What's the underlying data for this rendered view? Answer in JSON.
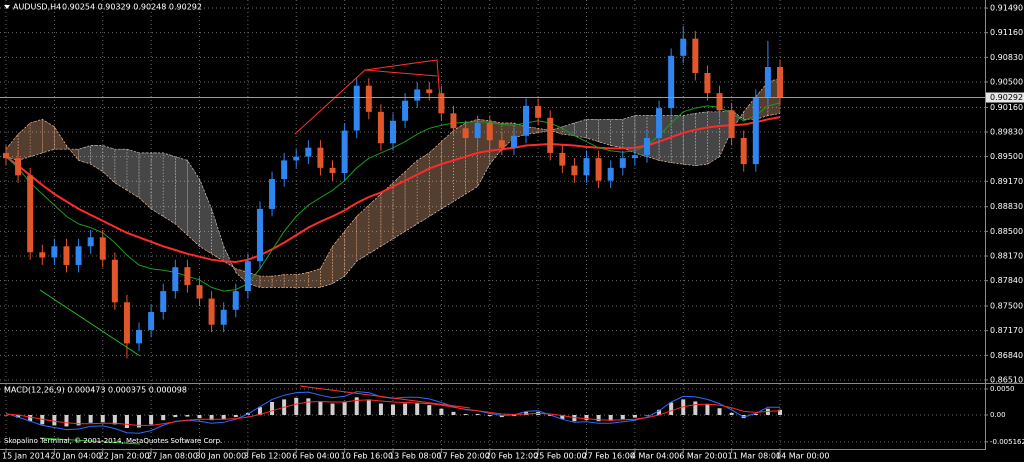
{
  "chart_data": [
    {
      "type": "candlestick",
      "title": "AUDUSD,H4",
      "subtitle": "0.90254 0.90329 0.90248 0.90292",
      "categories": [
        "15 Jan 2014",
        null,
        null,
        null,
        "20 Jan 04:00",
        null,
        null,
        null,
        "22 Jan 20:00",
        null,
        null,
        null,
        "27 Jan 08:00",
        null,
        null,
        null,
        "30 Jan 00:00",
        null,
        null,
        null,
        "3 Feb 12:00",
        null,
        null,
        null,
        "6 Feb 04:00",
        null,
        null,
        null,
        "10 Feb 16:00",
        null,
        null,
        null,
        "13 Feb 08:00",
        null,
        null,
        null,
        "17 Feb 20:00",
        null,
        null,
        null,
        "20 Feb 12:00",
        null,
        null,
        null,
        "25 Feb 00:00",
        null,
        null,
        null,
        "27 Feb 16:00",
        null,
        null,
        null,
        "4 Mar 04:00",
        null,
        null,
        null,
        "6 Mar 20:00",
        null,
        null,
        null,
        "11 Mar 08:00",
        null,
        null,
        null,
        "14 Mar 00:00"
      ],
      "open": [
        0.8955,
        0.8948,
        0.8925,
        0.8822,
        0.8815,
        0.883,
        0.8805,
        0.883,
        0.8842,
        0.8812,
        0.8755,
        0.87,
        0.8718,
        0.8742,
        0.877,
        0.8802,
        0.8778,
        0.876,
        0.8725,
        0.8745,
        0.877,
        0.881,
        0.888,
        0.892,
        0.8945,
        0.895,
        0.8962,
        0.8935,
        0.8928,
        0.8985,
        0.9045,
        0.901,
        0.8968,
        0.8998,
        0.9025,
        0.904,
        0.9035,
        0.9008,
        0.8988,
        0.8975,
        0.8995,
        0.8972,
        0.8962,
        0.8978,
        0.9018,
        0.9002,
        0.8955,
        0.8938,
        0.8925,
        0.8948,
        0.8918,
        0.8935,
        0.8948,
        0.8952,
        0.8975,
        0.9015,
        0.9085,
        0.9108,
        0.9062,
        0.9035,
        0.9012,
        0.8975,
        0.894,
        0.903,
        0.907
      ],
      "high": [
        0.8965,
        0.8958,
        0.8935,
        0.8832,
        0.884,
        0.884,
        0.884,
        0.8852,
        0.8852,
        0.8822,
        0.8765,
        0.8728,
        0.8752,
        0.878,
        0.8812,
        0.8812,
        0.8788,
        0.877,
        0.8755,
        0.878,
        0.882,
        0.889,
        0.893,
        0.8955,
        0.896,
        0.8972,
        0.8972,
        0.8945,
        0.8995,
        0.9055,
        0.9055,
        0.902,
        0.9008,
        0.9035,
        0.905,
        0.905,
        0.9045,
        0.9018,
        0.8998,
        0.9005,
        0.9005,
        0.8982,
        0.8988,
        0.9028,
        0.9028,
        0.9012,
        0.8965,
        0.8948,
        0.8958,
        0.8958,
        0.8945,
        0.8958,
        0.8962,
        0.8985,
        0.9025,
        0.9095,
        0.9125,
        0.9118,
        0.9072,
        0.9045,
        0.9022,
        0.8985,
        0.904,
        0.9105,
        0.908
      ],
      "low": [
        0.8938,
        0.8915,
        0.8812,
        0.8805,
        0.8805,
        0.8795,
        0.8795,
        0.882,
        0.8802,
        0.8745,
        0.868,
        0.869,
        0.8708,
        0.8732,
        0.876,
        0.8768,
        0.875,
        0.8715,
        0.8715,
        0.8735,
        0.876,
        0.88,
        0.887,
        0.891,
        0.8935,
        0.894,
        0.8925,
        0.8918,
        0.8918,
        0.8975,
        0.9,
        0.8958,
        0.8958,
        0.8988,
        0.9015,
        0.9025,
        0.8998,
        0.8978,
        0.8965,
        0.8965,
        0.8962,
        0.8952,
        0.8952,
        0.8968,
        0.8992,
        0.8945,
        0.8928,
        0.8915,
        0.8915,
        0.8908,
        0.8908,
        0.8925,
        0.8938,
        0.8942,
        0.8965,
        0.9005,
        0.9075,
        0.9052,
        0.9025,
        0.9002,
        0.8965,
        0.893,
        0.893,
        0.902,
        0.9019
      ],
      "close": [
        0.8948,
        0.8925,
        0.8822,
        0.8815,
        0.883,
        0.8805,
        0.883,
        0.8842,
        0.8812,
        0.8755,
        0.87,
        0.8718,
        0.8742,
        0.877,
        0.8802,
        0.8778,
        0.876,
        0.8725,
        0.8745,
        0.877,
        0.881,
        0.888,
        0.892,
        0.8945,
        0.895,
        0.8962,
        0.8935,
        0.8928,
        0.8985,
        0.9045,
        0.901,
        0.8968,
        0.8998,
        0.9025,
        0.904,
        0.9035,
        0.9008,
        0.8988,
        0.8975,
        0.8995,
        0.8972,
        0.8962,
        0.8978,
        0.9018,
        0.9002,
        0.8955,
        0.8938,
        0.8925,
        0.8948,
        0.8918,
        0.8935,
        0.8948,
        0.8952,
        0.8975,
        0.9015,
        0.9085,
        0.9108,
        0.9062,
        0.9035,
        0.9012,
        0.8975,
        0.894,
        0.903,
        0.907,
        0.9029
      ],
      "up_color": "#2f86f0",
      "down_color": "#e2562b",
      "overlays": [
        {
          "color": "#ff2a2a",
          "values": [
            0.895,
            0.8938,
            0.8925,
            0.8912,
            0.89,
            0.889,
            0.888,
            0.8872,
            0.8864,
            0.8856,
            0.8848,
            0.8842,
            0.8836,
            0.883,
            0.8825,
            0.882,
            0.8816,
            0.8812,
            0.881,
            0.8809,
            0.8812,
            0.8818,
            0.8826,
            0.8835,
            0.8845,
            0.8855,
            0.8863,
            0.887,
            0.8878,
            0.8888,
            0.8896,
            0.8902,
            0.891,
            0.8918,
            0.8926,
            0.8934,
            0.894,
            0.8945,
            0.895,
            0.8955,
            0.8958,
            0.896,
            0.8962,
            0.8965,
            0.8966,
            0.8967,
            0.8966,
            0.8965,
            0.8963,
            0.8962,
            0.8961,
            0.8961,
            0.8962,
            0.8965,
            0.897,
            0.8976,
            0.8982,
            0.8986,
            0.8989,
            0.8991,
            0.8992,
            0.8993,
            0.8996,
            0.9,
            0.9003
          ]
        },
        {
          "color": "#1c9a1c",
          "values": [
            0.895,
            0.8935,
            0.8915,
            0.89,
            0.8885,
            0.887,
            0.886,
            0.8855,
            0.8848,
            0.8835,
            0.8818,
            0.8805,
            0.88,
            0.8798,
            0.8795,
            0.879,
            0.8785,
            0.8775,
            0.877,
            0.8772,
            0.878,
            0.88,
            0.8825,
            0.885,
            0.887,
            0.8885,
            0.8895,
            0.8905,
            0.8918,
            0.8935,
            0.8948,
            0.8955,
            0.8962,
            0.897,
            0.898,
            0.8988,
            0.8992,
            0.8995,
            0.8996,
            0.8997,
            0.8996,
            0.8993,
            0.8992,
            0.8995,
            0.8998,
            0.8995,
            0.8988,
            0.8978,
            0.897,
            0.8962,
            0.8958,
            0.8956,
            0.8958,
            0.8965,
            0.8978,
            0.8995,
            0.901,
            0.9015,
            0.9018,
            0.9016,
            0.9008,
            0.8998,
            0.9005,
            0.9018,
            0.9022
          ]
        }
      ],
      "cloud": {
        "span_a": [
          0.896,
          0.898,
          0.8995,
          0.9,
          0.899,
          0.8965,
          0.8945,
          0.894,
          0.893,
          0.8915,
          0.8905,
          0.8895,
          0.888,
          0.887,
          0.886,
          0.8845,
          0.883,
          0.882,
          0.881,
          0.88,
          0.8795,
          0.879,
          0.879,
          0.8792,
          0.8792,
          0.8795,
          0.88,
          0.883,
          0.885,
          0.887,
          0.8885,
          0.89,
          0.8915,
          0.893,
          0.8945,
          0.8955,
          0.897,
          0.8985,
          0.8995,
          0.9,
          0.8998,
          0.8995,
          0.8995,
          0.899,
          0.8988,
          0.8985,
          0.898,
          0.8978,
          0.8975,
          0.897,
          0.8965,
          0.8962,
          0.8955,
          0.895,
          0.8945,
          0.8942,
          0.894,
          0.8938,
          0.894,
          0.895,
          0.8985,
          0.901,
          0.903,
          0.905,
          0.9055
        ],
        "span_b": [
          0.895,
          0.8945,
          0.895,
          0.8955,
          0.896,
          0.896,
          0.896,
          0.8965,
          0.8965,
          0.896,
          0.896,
          0.8955,
          0.8955,
          0.8955,
          0.895,
          0.8945,
          0.892,
          0.888,
          0.883,
          0.8795,
          0.878,
          0.8775,
          0.8775,
          0.8775,
          0.8775,
          0.8775,
          0.8775,
          0.878,
          0.879,
          0.881,
          0.882,
          0.883,
          0.884,
          0.885,
          0.886,
          0.887,
          0.888,
          0.889,
          0.89,
          0.891,
          0.894,
          0.896,
          0.8975,
          0.898,
          0.8982,
          0.8985,
          0.899,
          0.8995,
          0.9,
          0.9,
          0.9,
          0.9,
          0.9005,
          0.9005,
          0.9005,
          0.9005,
          0.9005,
          0.9008,
          0.901,
          0.901,
          0.9012,
          0.9,
          0.9,
          0.9005,
          0.9008
        ],
        "up_color": "#f2b38a",
        "down_color": "#c8c8c8"
      },
      "last_price": 0.90292,
      "ylim": [
        0.86483,
        0.91584
      ],
      "yticks": [
        {
          "value": 0.9149,
          "label": "0.91490"
        },
        {
          "value": 0.9116,
          "label": "0.91160"
        },
        {
          "value": 0.9083,
          "label": "0.90830"
        },
        {
          "value": 0.905,
          "label": "0.90500"
        },
        {
          "value": 0.9016,
          "label": "0.90160"
        },
        {
          "value": 0.8983,
          "label": "0.89830"
        },
        {
          "value": 0.895,
          "label": "0.89500"
        },
        {
          "value": 0.8917,
          "label": "0.89170"
        },
        {
          "value": 0.8883,
          "label": "0.88830"
        },
        {
          "value": 0.885,
          "label": "0.88500"
        },
        {
          "value": 0.8817,
          "label": "0.88170"
        },
        {
          "value": 0.8784,
          "label": "0.87840"
        },
        {
          "value": 0.875,
          "label": "0.87500"
        },
        {
          "value": 0.8717,
          "label": "0.87170"
        },
        {
          "value": 0.8684,
          "label": "0.86840"
        },
        {
          "value": 0.8651,
          "label": "0.86510"
        }
      ],
      "grid": true
    },
    {
      "type": "macd",
      "title": "MACD(12,26,9) 0.000473 0.000375 0.000098",
      "histogram": [
        0.0,
        -0.0005,
        -0.0012,
        -0.0018,
        -0.002,
        -0.0022,
        -0.002,
        -0.0015,
        -0.0014,
        -0.0018,
        -0.0025,
        -0.0024,
        -0.0018,
        -0.001,
        -0.0004,
        -0.0003,
        -0.0006,
        -0.001,
        -0.0008,
        -0.0004,
        0.0004,
        0.0015,
        0.0025,
        0.003,
        0.0033,
        0.0032,
        0.0026,
        0.0022,
        0.0026,
        0.0034,
        0.003,
        0.0022,
        0.002,
        0.0022,
        0.0022,
        0.0019,
        0.0012,
        0.0006,
        0.0002,
        0.0002,
        -0.0002,
        -0.0004,
        -0.0002,
        0.0006,
        0.0006,
        -0.0002,
        -0.0008,
        -0.0012,
        -0.001,
        -0.0012,
        -0.0011,
        -0.0008,
        -0.0005,
        0.0,
        0.001,
        0.0024,
        0.003,
        0.0026,
        0.002,
        0.0013,
        0.0004,
        -0.0006,
        0.0002,
        0.0012,
        0.001
      ],
      "histogram_color": "#cfcfcf",
      "lines": [
        {
          "color": "#2d6bff",
          "values": [
            0.0003,
            -0.0004,
            -0.0012,
            -0.002,
            -0.0024,
            -0.0028,
            -0.0027,
            -0.0022,
            -0.0021,
            -0.0026,
            -0.0034,
            -0.0035,
            -0.003,
            -0.002,
            -0.0012,
            -0.001,
            -0.0012,
            -0.0016,
            -0.0014,
            -0.0008,
            0.0002,
            0.0016,
            0.003,
            0.0038,
            0.0043,
            0.0044,
            0.0038,
            0.0033,
            0.0036,
            0.0045,
            0.0043,
            0.0035,
            0.0032,
            0.0034,
            0.0034,
            0.0031,
            0.0024,
            0.0016,
            0.001,
            0.0008,
            0.0003,
            -0.0001,
            0.0,
            0.0007,
            0.0008,
            0.0,
            -0.0008,
            -0.0014,
            -0.0013,
            -0.0016,
            -0.0016,
            -0.0013,
            -0.001,
            -0.0004,
            0.0008,
            0.0025,
            0.0036,
            0.0035,
            0.003,
            0.0022,
            0.001,
            -0.0004,
            0.0003,
            0.0015,
            0.0015
          ]
        },
        {
          "color": "#ff2a2a",
          "values": [
            0.0002,
            0.0,
            -0.0004,
            -0.0008,
            -0.0012,
            -0.0015,
            -0.0017,
            -0.0017,
            -0.0016,
            -0.0016,
            -0.0018,
            -0.002,
            -0.002,
            -0.0017,
            -0.0013,
            -0.001,
            -0.0008,
            -0.0008,
            -0.0008,
            -0.0007,
            -0.0004,
            0.0001,
            0.0008,
            0.0015,
            0.0021,
            0.0025,
            0.0026,
            0.0025,
            0.0025,
            0.0028,
            0.0029,
            0.0027,
            0.0025,
            0.0024,
            0.0023,
            0.0022,
            0.0019,
            0.0015,
            0.0011,
            0.0008,
            0.0005,
            0.0002,
            0.0001,
            0.0002,
            0.0003,
            0.0002,
            -0.0001,
            -0.0005,
            -0.0007,
            -0.0009,
            -0.001,
            -0.0009,
            -0.0008,
            -0.0005,
            0.0,
            0.0008,
            0.0016,
            0.002,
            0.0021,
            0.0019,
            0.0014,
            0.0007,
            0.0005,
            0.0007,
            0.0008
          ]
        }
      ],
      "ylim": [
        -0.00654,
        0.00596
      ],
      "yticks": [
        {
          "value": 0.005,
          "label": "0.0050"
        },
        {
          "value": 0,
          "label": "0.00"
        },
        -0.005162
      ]
    },
    {
      "watermark": "Skopalino Terminal, © 2001-2014, MetaQuotes Software Corp."
    }
  ]
}
